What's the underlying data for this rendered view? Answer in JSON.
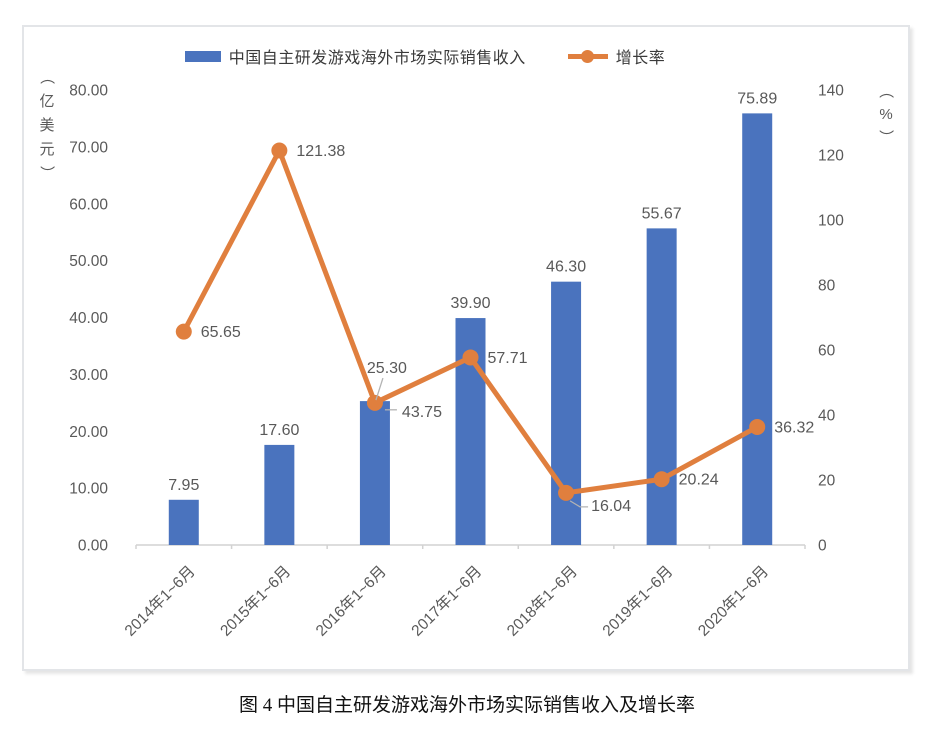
{
  "figure": {
    "caption": "图 4 中国自主研发游戏海外市场实际销售收入及增长率"
  },
  "chart_data": {
    "type": "bar+line",
    "categories": [
      "2014年1~6月",
      "2015年1~6月",
      "2016年1~6月",
      "2017年1~6月",
      "2018年1~6月",
      "2019年1~6月",
      "2020年1~6月"
    ],
    "series": [
      {
        "name": "中国自主研发游戏海外市场实际销售收入",
        "type": "bar",
        "axis": "left",
        "color": "#4a73be",
        "values": [
          7.95,
          17.6,
          25.3,
          39.9,
          46.3,
          55.67,
          75.89
        ],
        "labels": [
          "7.95",
          "17.60",
          "25.30",
          "39.90",
          "46.30",
          "55.67",
          "75.89"
        ],
        "label_raised": [
          false,
          false,
          true,
          false,
          false,
          false,
          false
        ]
      },
      {
        "name": "增长率",
        "type": "line",
        "axis": "right",
        "color": "#e07f3e",
        "values": [
          65.65,
          121.38,
          43.75,
          57.71,
          16.04,
          20.24,
          36.32
        ],
        "labels": [
          "65.65",
          "121.38",
          "43.75",
          "57.71",
          "16.04",
          "20.24",
          "36.32"
        ],
        "label_side": [
          "right",
          "right",
          "right-leader",
          "right",
          "below-leader",
          "right",
          "right"
        ]
      }
    ],
    "left_axis": {
      "unit": "（亿美元）",
      "min": 0,
      "max": 80,
      "step": 10,
      "tick_labels": [
        "0.00",
        "10.00",
        "20.00",
        "30.00",
        "40.00",
        "50.00",
        "60.00",
        "70.00",
        "80.00"
      ]
    },
    "right_axis": {
      "unit": "（%）",
      "min": 0,
      "max": 140,
      "step": 20,
      "tick_labels": [
        "0",
        "20",
        "40",
        "60",
        "80",
        "100",
        "120",
        "140"
      ]
    },
    "grid": false,
    "legend_position": "top",
    "label_color": "#595959"
  }
}
